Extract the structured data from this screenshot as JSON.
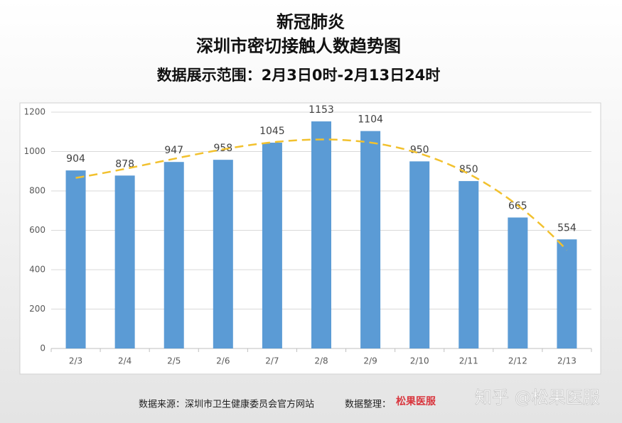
{
  "chart_data": {
    "type": "bar",
    "title_lines": [
      "新冠肺炎",
      "深圳市密切接触人数趋势图"
    ],
    "subtitle": "数据展示范围：2月3日0时-2月13日24时",
    "categories": [
      "2/3",
      "2/4",
      "2/5",
      "2/6",
      "2/7",
      "2/8",
      "2/9",
      "2/10",
      "2/11",
      "2/12",
      "2/13"
    ],
    "values": [
      904,
      878,
      947,
      958,
      1045,
      1153,
      1104,
      950,
      850,
      665,
      554
    ],
    "color": "#5b9bd5",
    "ylim": [
      0,
      1200
    ],
    "yticks": [
      0,
      200,
      400,
      600,
      800,
      1000,
      1200
    ],
    "grid": true,
    "trendline": {
      "type": "polynomial",
      "order": 3,
      "color": "#f2c12e"
    }
  },
  "footer": {
    "source": "数据来源：深圳市卫生健康委员会官方网站",
    "compiled_by": "数据整理：",
    "logo": "松果医服"
  },
  "watermark": "知乎 @松果医服"
}
